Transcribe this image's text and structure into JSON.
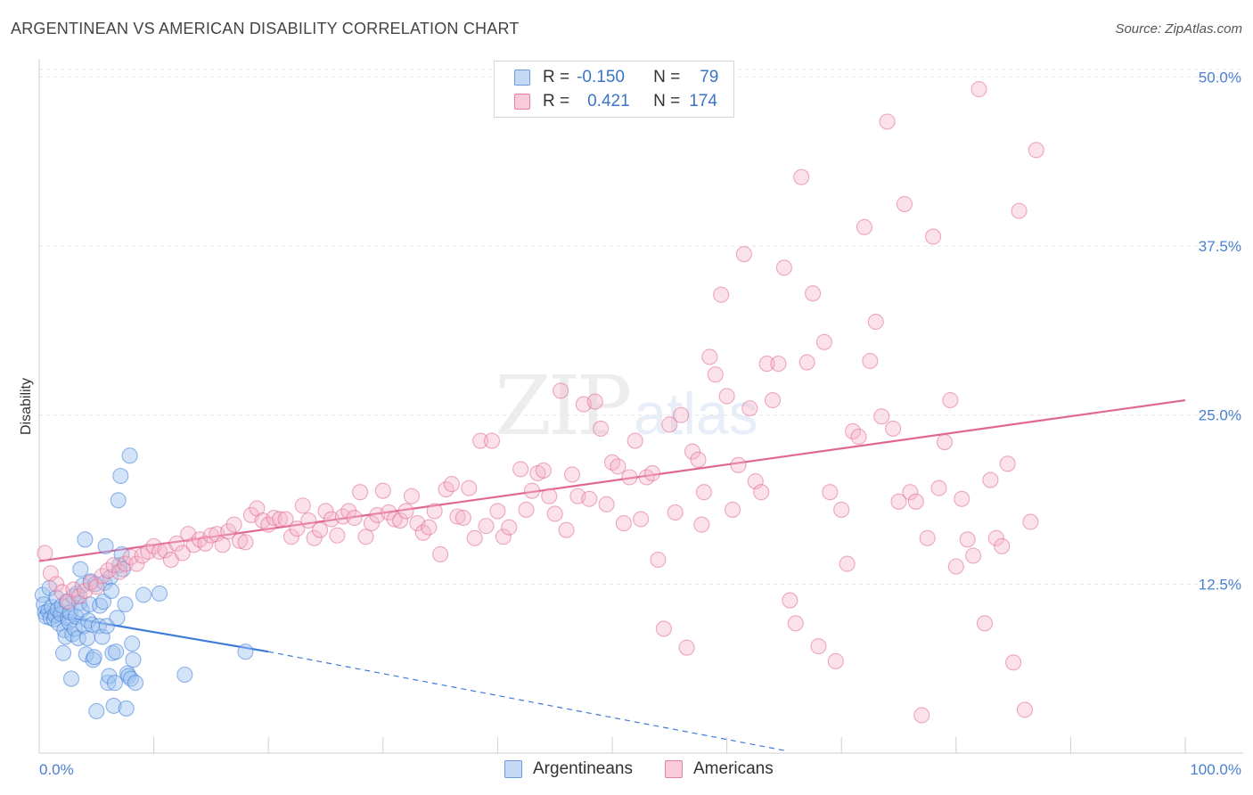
{
  "title": "ARGENTINEAN VS AMERICAN DISABILITY CORRELATION CHART",
  "source": "Source: ZipAtlas.com",
  "watermark": {
    "zip": "ZIP",
    "atlas": "atlas"
  },
  "legend": {
    "rows": [
      {
        "r_label": "R =",
        "r_value": "-0.150",
        "n_label": "N =",
        "n_value": "79",
        "color": "#6a9be0",
        "fill": "#c5d9f5"
      },
      {
        "r_label": "R =",
        "r_value": "0.421",
        "n_label": "N =",
        "n_value": "174",
        "color": "#e87fa2",
        "fill": "#f9cad9"
      }
    ]
  },
  "bottom_legend": {
    "series1": "Argentineans",
    "series2": "Americans"
  },
  "chart_data": {
    "type": "scatter",
    "title": "ARGENTINEAN VS AMERICAN DISABILITY CORRELATION CHART",
    "xlabel": "",
    "ylabel": "Disability",
    "xlim": [
      0,
      100
    ],
    "ylim": [
      0,
      50
    ],
    "x_tick_labels": [
      "0.0%",
      "100.0%"
    ],
    "y_ticks": [
      12.5,
      25.0,
      37.5,
      50.0
    ],
    "y_tick_labels": [
      "12.5%",
      "25.0%",
      "37.5%",
      "50.0%"
    ],
    "grid": true,
    "series": [
      {
        "name": "Argentineans",
        "color": "#3d7bd9",
        "fill": "rgba(160,195,240,0.45)",
        "trend": {
          "x0": 0,
          "y0": 10.4,
          "x1": 20,
          "y1": 7.5,
          "dash_to_x": 65,
          "dash_to_y": 0.2
        },
        "points": [
          [
            0.3,
            11.7
          ],
          [
            0.4,
            11.0
          ],
          [
            0.5,
            10.4
          ],
          [
            0.6,
            10.1
          ],
          [
            0.8,
            10.5
          ],
          [
            0.9,
            12.2
          ],
          [
            1.0,
            10.0
          ],
          [
            1.1,
            10.8
          ],
          [
            1.3,
            9.9
          ],
          [
            1.4,
            10.2
          ],
          [
            1.5,
            11.5
          ],
          [
            1.6,
            10.6
          ],
          [
            1.7,
            9.6
          ],
          [
            1.9,
            10.3
          ],
          [
            2.0,
            10.9
          ],
          [
            2.1,
            7.4
          ],
          [
            2.2,
            9.1
          ],
          [
            2.3,
            8.6
          ],
          [
            2.4,
            11.2
          ],
          [
            2.5,
            10.0
          ],
          [
            2.6,
            9.7
          ],
          [
            2.7,
            10.4
          ],
          [
            2.8,
            5.5
          ],
          [
            2.9,
            8.8
          ],
          [
            3.0,
            11.6
          ],
          [
            3.1,
            9.2
          ],
          [
            3.2,
            10.1
          ],
          [
            3.3,
            11.8
          ],
          [
            3.4,
            8.5
          ],
          [
            3.5,
            11.1
          ],
          [
            3.6,
            13.6
          ],
          [
            3.7,
            10.6
          ],
          [
            3.8,
            12.4
          ],
          [
            3.9,
            9.4
          ],
          [
            4.0,
            15.8
          ],
          [
            4.1,
            7.3
          ],
          [
            4.2,
            8.5
          ],
          [
            4.3,
            9.8
          ],
          [
            4.4,
            11.0
          ],
          [
            4.5,
            12.7
          ],
          [
            4.6,
            9.5
          ],
          [
            4.7,
            6.9
          ],
          [
            4.8,
            7.1
          ],
          [
            4.9,
            12.5
          ],
          [
            5.0,
            3.1
          ],
          [
            5.2,
            9.4
          ],
          [
            5.3,
            10.9
          ],
          [
            5.5,
            8.6
          ],
          [
            5.6,
            11.2
          ],
          [
            5.7,
            12.6
          ],
          [
            5.8,
            15.3
          ],
          [
            5.9,
            9.4
          ],
          [
            6.0,
            5.2
          ],
          [
            6.1,
            5.7
          ],
          [
            6.2,
            13.0
          ],
          [
            6.3,
            12.0
          ],
          [
            6.4,
            7.4
          ],
          [
            6.5,
            3.5
          ],
          [
            6.6,
            5.2
          ],
          [
            6.7,
            7.5
          ],
          [
            6.8,
            10.0
          ],
          [
            6.9,
            18.7
          ],
          [
            7.0,
            13.9
          ],
          [
            7.1,
            20.5
          ],
          [
            7.2,
            14.7
          ],
          [
            7.3,
            13.6
          ],
          [
            7.5,
            11.0
          ],
          [
            7.6,
            3.3
          ],
          [
            7.7,
            5.9
          ],
          [
            7.8,
            5.7
          ],
          [
            7.9,
            22.0
          ],
          [
            8.0,
            5.5
          ],
          [
            8.1,
            8.1
          ],
          [
            8.2,
            6.9
          ],
          [
            8.4,
            5.2
          ],
          [
            9.1,
            11.7
          ],
          [
            10.5,
            11.8
          ],
          [
            12.7,
            5.8
          ],
          [
            18.0,
            7.5
          ]
        ]
      },
      {
        "name": "Americans",
        "color": "#e06890",
        "fill": "rgba(245,180,200,0.40)",
        "trend": {
          "x0": 0,
          "y0": 14.2,
          "x1": 100,
          "y1": 26.1
        },
        "points": [
          [
            0.5,
            14.8
          ],
          [
            1.0,
            13.3
          ],
          [
            1.5,
            12.5
          ],
          [
            2.0,
            11.9
          ],
          [
            2.5,
            11.2
          ],
          [
            3.0,
            12.1
          ],
          [
            3.5,
            11.6
          ],
          [
            4.0,
            12.0
          ],
          [
            4.5,
            12.6
          ],
          [
            5.0,
            12.3
          ],
          [
            5.5,
            13.1
          ],
          [
            6.0,
            13.5
          ],
          [
            6.5,
            13.9
          ],
          [
            7.0,
            13.4
          ],
          [
            7.5,
            14.0
          ],
          [
            8.0,
            14.5
          ],
          [
            8.5,
            14.0
          ],
          [
            9.0,
            14.6
          ],
          [
            9.5,
            14.9
          ],
          [
            10.0,
            15.3
          ],
          [
            10.5,
            14.9
          ],
          [
            11.0,
            15.0
          ],
          [
            11.5,
            14.3
          ],
          [
            12.0,
            15.5
          ],
          [
            12.5,
            14.8
          ],
          [
            13.0,
            16.2
          ],
          [
            13.5,
            15.4
          ],
          [
            14.0,
            15.8
          ],
          [
            14.5,
            15.5
          ],
          [
            15.0,
            16.1
          ],
          [
            15.5,
            16.2
          ],
          [
            16.0,
            15.4
          ],
          [
            16.5,
            16.4
          ],
          [
            17.0,
            16.9
          ],
          [
            17.5,
            15.7
          ],
          [
            18.0,
            15.6
          ],
          [
            18.5,
            17.6
          ],
          [
            19.0,
            18.1
          ],
          [
            19.5,
            17.2
          ],
          [
            20.0,
            16.9
          ],
          [
            20.5,
            17.4
          ],
          [
            21.0,
            17.3
          ],
          [
            21.5,
            17.3
          ],
          [
            22.0,
            16.0
          ],
          [
            22.5,
            16.6
          ],
          [
            23.0,
            18.3
          ],
          [
            23.5,
            17.2
          ],
          [
            24.0,
            15.9
          ],
          [
            24.5,
            16.5
          ],
          [
            25.0,
            17.9
          ],
          [
            25.5,
            17.3
          ],
          [
            26.0,
            16.1
          ],
          [
            26.5,
            17.5
          ],
          [
            27.0,
            17.9
          ],
          [
            27.5,
            17.4
          ],
          [
            28.0,
            19.3
          ],
          [
            28.5,
            16.0
          ],
          [
            29.0,
            17.0
          ],
          [
            29.5,
            17.6
          ],
          [
            30.0,
            19.4
          ],
          [
            30.5,
            17.8
          ],
          [
            31.0,
            17.3
          ],
          [
            31.5,
            17.2
          ],
          [
            32.0,
            17.9
          ],
          [
            32.5,
            19.0
          ],
          [
            33.0,
            17.0
          ],
          [
            33.5,
            16.3
          ],
          [
            34.0,
            16.7
          ],
          [
            34.5,
            17.9
          ],
          [
            35.0,
            14.7
          ],
          [
            35.5,
            19.5
          ],
          [
            36.0,
            19.9
          ],
          [
            36.5,
            17.5
          ],
          [
            37.0,
            17.4
          ],
          [
            37.5,
            19.6
          ],
          [
            38.0,
            15.9
          ],
          [
            38.5,
            23.1
          ],
          [
            39.0,
            16.8
          ],
          [
            39.5,
            23.1
          ],
          [
            40.0,
            17.9
          ],
          [
            40.5,
            16.0
          ],
          [
            41.0,
            16.7
          ],
          [
            42.0,
            21.0
          ],
          [
            42.5,
            18.0
          ],
          [
            43.0,
            19.4
          ],
          [
            43.5,
            20.7
          ],
          [
            44.0,
            20.9
          ],
          [
            44.5,
            19.0
          ],
          [
            45.0,
            17.7
          ],
          [
            45.5,
            26.8
          ],
          [
            46.0,
            16.5
          ],
          [
            46.5,
            20.6
          ],
          [
            47.0,
            19.0
          ],
          [
            47.5,
            25.8
          ],
          [
            48.0,
            18.8
          ],
          [
            48.5,
            26.0
          ],
          [
            49.0,
            24.0
          ],
          [
            49.5,
            18.4
          ],
          [
            50.0,
            21.5
          ],
          [
            50.5,
            21.2
          ],
          [
            51.0,
            17.0
          ],
          [
            51.5,
            20.4
          ],
          [
            52.0,
            23.1
          ],
          [
            52.5,
            17.3
          ],
          [
            53.0,
            20.4
          ],
          [
            53.5,
            20.7
          ],
          [
            54.0,
            14.3
          ],
          [
            54.5,
            9.2
          ],
          [
            55.0,
            24.3
          ],
          [
            55.5,
            17.8
          ],
          [
            56.0,
            25.0
          ],
          [
            56.5,
            7.8
          ],
          [
            57.0,
            22.3
          ],
          [
            57.5,
            21.7
          ],
          [
            57.8,
            16.9
          ],
          [
            58.0,
            19.3
          ],
          [
            58.5,
            29.3
          ],
          [
            59.0,
            28.0
          ],
          [
            59.5,
            33.9
          ],
          [
            60.0,
            26.4
          ],
          [
            60.5,
            18.0
          ],
          [
            61.0,
            21.3
          ],
          [
            61.5,
            36.9
          ],
          [
            62.0,
            25.5
          ],
          [
            62.5,
            20.1
          ],
          [
            63.0,
            19.3
          ],
          [
            63.5,
            28.8
          ],
          [
            64.0,
            26.1
          ],
          [
            64.5,
            28.8
          ],
          [
            65.0,
            35.9
          ],
          [
            65.5,
            11.3
          ],
          [
            66.0,
            9.6
          ],
          [
            66.5,
            42.6
          ],
          [
            67.0,
            28.9
          ],
          [
            67.5,
            34.0
          ],
          [
            68.0,
            7.9
          ],
          [
            68.5,
            30.4
          ],
          [
            69.0,
            19.3
          ],
          [
            69.5,
            6.8
          ],
          [
            70.0,
            18.0
          ],
          [
            70.5,
            14.0
          ],
          [
            71.0,
            23.8
          ],
          [
            71.5,
            23.4
          ],
          [
            72.0,
            38.9
          ],
          [
            72.5,
            29.0
          ],
          [
            73.0,
            31.9
          ],
          [
            73.5,
            24.9
          ],
          [
            74.0,
            46.7
          ],
          [
            74.5,
            24.0
          ],
          [
            75.0,
            18.6
          ],
          [
            75.5,
            40.6
          ],
          [
            76.0,
            19.3
          ],
          [
            76.5,
            18.6
          ],
          [
            77.0,
            2.8
          ],
          [
            77.5,
            15.9
          ],
          [
            78.0,
            38.2
          ],
          [
            78.5,
            19.6
          ],
          [
            79.0,
            23.0
          ],
          [
            79.5,
            26.1
          ],
          [
            80.0,
            13.8
          ],
          [
            80.5,
            18.8
          ],
          [
            81.0,
            15.8
          ],
          [
            81.5,
            14.6
          ],
          [
            82.0,
            49.1
          ],
          [
            82.5,
            9.6
          ],
          [
            83.0,
            20.2
          ],
          [
            83.5,
            15.9
          ],
          [
            84.0,
            15.3
          ],
          [
            84.5,
            21.4
          ],
          [
            85.0,
            6.7
          ],
          [
            85.5,
            40.1
          ],
          [
            86.0,
            3.2
          ],
          [
            86.5,
            17.1
          ],
          [
            87.0,
            44.6
          ]
        ]
      }
    ]
  }
}
